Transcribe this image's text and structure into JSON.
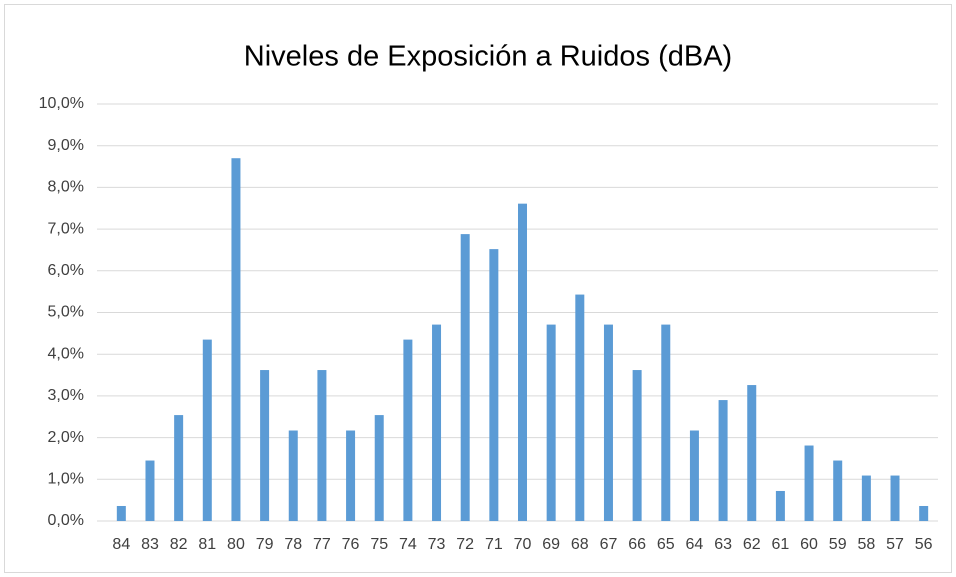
{
  "chart_data": {
    "type": "bar",
    "title": "Niveles de Exposición a Ruidos (dBA)",
    "categories": [
      "84",
      "83",
      "82",
      "81",
      "80",
      "79",
      "78",
      "77",
      "76",
      "75",
      "74",
      "73",
      "72",
      "71",
      "70",
      "69",
      "68",
      "67",
      "66",
      "65",
      "64",
      "63",
      "62",
      "61",
      "60",
      "59",
      "58",
      "57",
      "56"
    ],
    "values": [
      0.36,
      1.45,
      2.54,
      4.35,
      8.7,
      3.62,
      2.17,
      3.62,
      2.17,
      2.54,
      4.35,
      4.71,
      6.88,
      6.52,
      7.61,
      4.71,
      5.43,
      4.71,
      3.62,
      4.71,
      2.17,
      2.9,
      3.26,
      0.72,
      1.81,
      1.45,
      1.09,
      1.09,
      0.36
    ],
    "color": "#5b9bd5",
    "ylim": [
      0,
      10
    ],
    "yticks": [
      {
        "value": 0,
        "label": "0,0%"
      },
      {
        "value": 1,
        "label": "1,0%"
      },
      {
        "value": 2,
        "label": "2,0%"
      },
      {
        "value": 3,
        "label": "3,0%"
      },
      {
        "value": 4,
        "label": "4,0%"
      },
      {
        "value": 5,
        "label": "5,0%"
      },
      {
        "value": 6,
        "label": "6,0%"
      },
      {
        "value": 7,
        "label": "7,0%"
      },
      {
        "value": 8,
        "label": "8,0%"
      },
      {
        "value": 9,
        "label": "9,0%"
      },
      {
        "value": 10,
        "label": "10,0%"
      }
    ],
    "grid": true
  }
}
